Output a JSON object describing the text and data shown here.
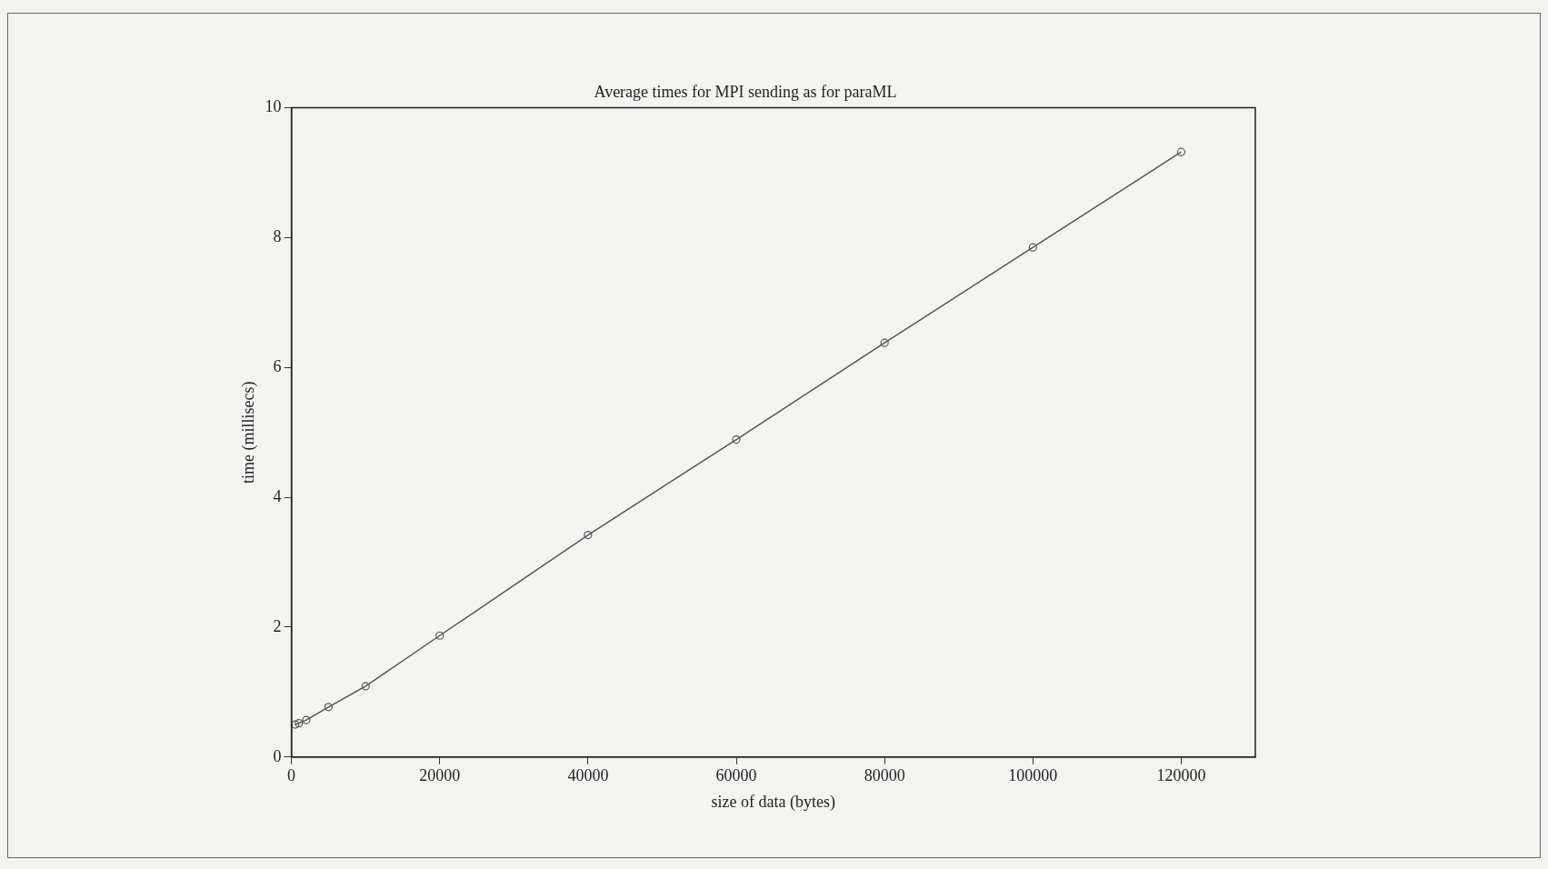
{
  "chart_data": {
    "type": "line",
    "title": "Average times for MPI sending as for paraML",
    "xlabel": "size of data (bytes)",
    "ylabel": "time (millisecs)",
    "x": [
      500,
      1000,
      2000,
      5000,
      10000,
      20000,
      40000,
      60000,
      80000,
      100000,
      120000
    ],
    "series": [
      {
        "color": "#555555",
        "values": [
          0.5,
          0.52,
          0.57,
          0.77,
          1.09,
          1.87,
          3.42,
          4.89,
          6.38,
          7.85,
          9.32
        ]
      }
    ],
    "xlim": [
      0,
      130000
    ],
    "xticks": [
      0,
      20000,
      40000,
      60000,
      80000,
      100000,
      120000
    ],
    "ylim": [
      0,
      10
    ],
    "yticks": [
      0,
      2,
      4,
      6,
      8,
      10
    ],
    "grid": false,
    "legend": false,
    "marker": "circle",
    "line_style": "solid"
  }
}
